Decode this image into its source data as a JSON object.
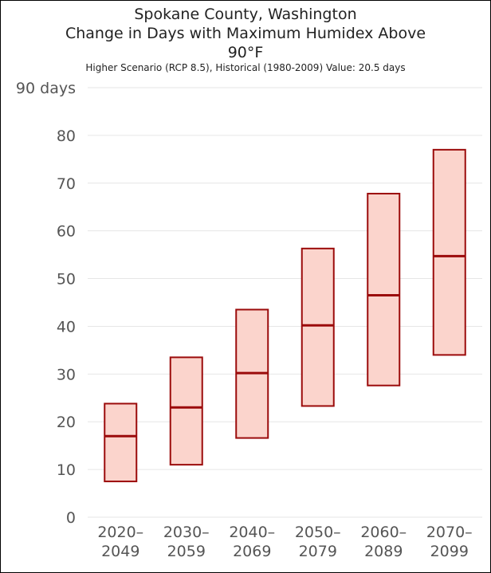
{
  "title_lines": [
    "Spokane County, Washington",
    "Change in Days with Maximum Humidex Above",
    "90°F"
  ],
  "subtitle": "Higher Scenario (RCP 8.5), Historical (1980-2009) Value: 20.5 days",
  "chart_data": {
    "type": "box",
    "title": "Spokane County, Washington Change in Days with Maximum Humidex Above 90°F",
    "subtitle": "Higher Scenario (RCP 8.5), Historical (1980-2009) Value: 20.5 days",
    "y_unit": "days",
    "ylim": [
      0,
      90
    ],
    "y_ticks": [
      0,
      10,
      20,
      30,
      40,
      50,
      60,
      70,
      80,
      90
    ],
    "y_tick_labels": [
      "0",
      "10",
      "20",
      "30",
      "40",
      "50",
      "60",
      "70",
      "80",
      "90 days"
    ],
    "grid": true,
    "categories": [
      [
        "2020–",
        "2049"
      ],
      [
        "2030–",
        "2059"
      ],
      [
        "2040–",
        "2069"
      ],
      [
        "2050–",
        "2079"
      ],
      [
        "2060–",
        "2089"
      ],
      [
        "2070–",
        "2099"
      ]
    ],
    "boxes": [
      {
        "low": 7.5,
        "median": 17.0,
        "high": 23.8
      },
      {
        "low": 11.0,
        "median": 23.0,
        "high": 33.5
      },
      {
        "low": 16.6,
        "median": 30.2,
        "high": 43.5
      },
      {
        "low": 23.3,
        "median": 40.2,
        "high": 56.3
      },
      {
        "low": 27.6,
        "median": 46.5,
        "high": 67.8
      },
      {
        "low": 34.0,
        "median": 54.7,
        "high": 77.0
      }
    ],
    "colors": {
      "fill": "#fbd4cc",
      "stroke": "#9b0b0b",
      "grid": "#e6e6e6",
      "axis_text": "#555555"
    }
  }
}
